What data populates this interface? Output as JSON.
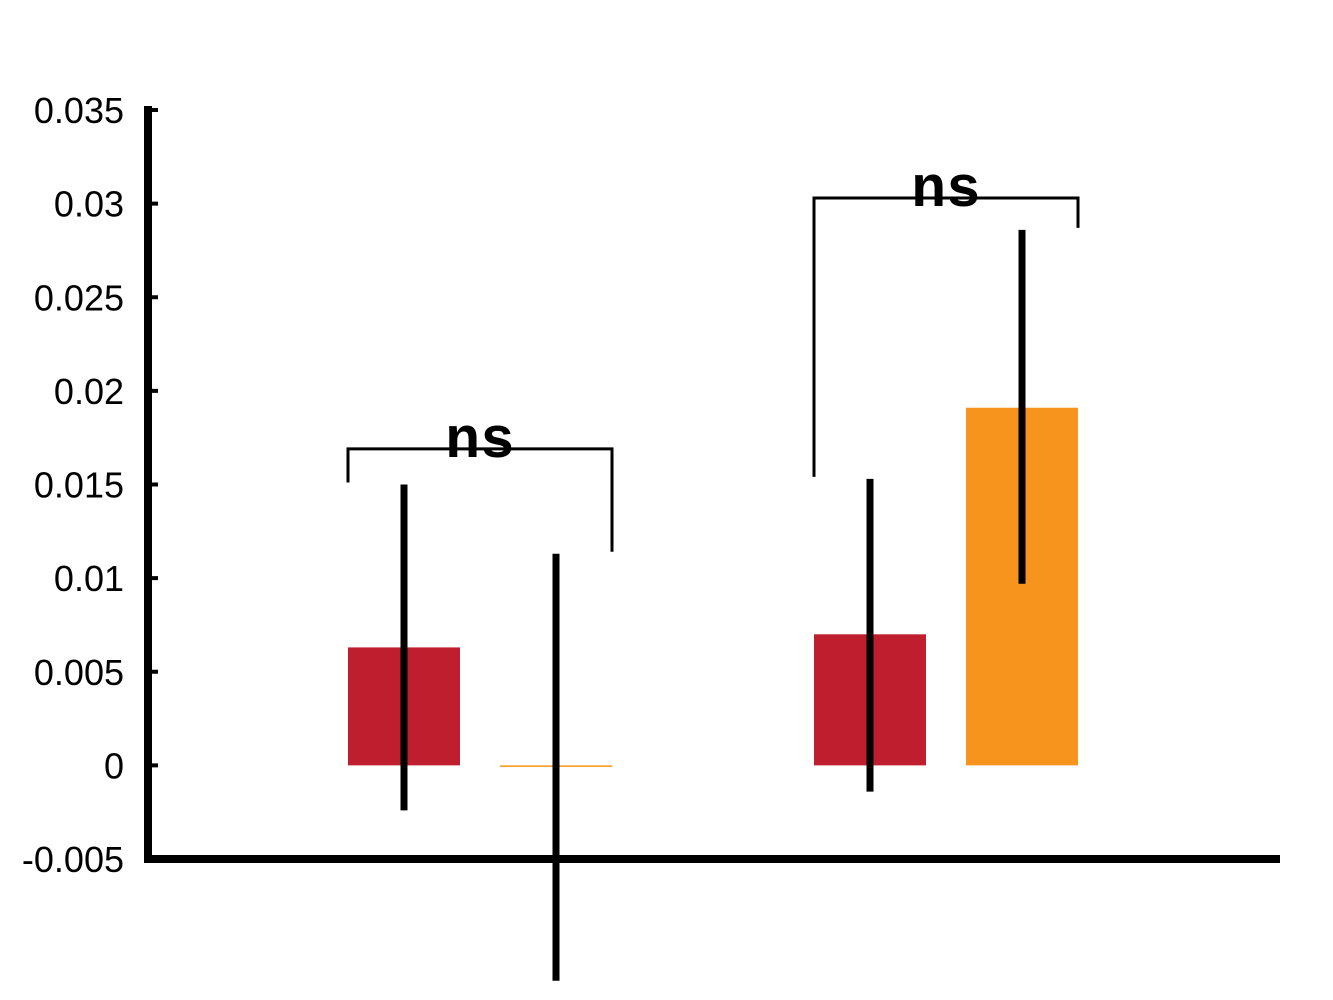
{
  "chart_data": {
    "type": "bar",
    "title": "",
    "xlabel": "",
    "ylabel": "",
    "ylim": [
      -0.005,
      0.035
    ],
    "yticks": [
      -0.005,
      0,
      0.005,
      0.01,
      0.015,
      0.02,
      0.025,
      0.03,
      0.035
    ],
    "ytick_labels": [
      "-0.005",
      "0",
      "0.005",
      "0.01",
      "0.015",
      "0.02",
      "0.025",
      "0.03",
      "0.035"
    ],
    "grid": false,
    "legend": "none",
    "groups": [
      {
        "bars": [
          {
            "value": 0.0063,
            "err_low": -0.0024,
            "err_high": 0.015,
            "color": "#be1e2d"
          },
          {
            "value": 0.0,
            "err_low": -0.0115,
            "err_high": 0.0113,
            "color": "#f7941d"
          }
        ],
        "significance": {
          "label": "ns",
          "y": 0.0169
        }
      },
      {
        "bars": [
          {
            "value": 0.007,
            "err_low": -0.0014,
            "err_high": 0.0153,
            "color": "#be1e2d"
          },
          {
            "value": 0.0191,
            "err_low": 0.0097,
            "err_high": 0.0286,
            "color": "#f7941d"
          }
        ],
        "significance": {
          "label": "ns",
          "y": 0.0303
        }
      }
    ]
  }
}
